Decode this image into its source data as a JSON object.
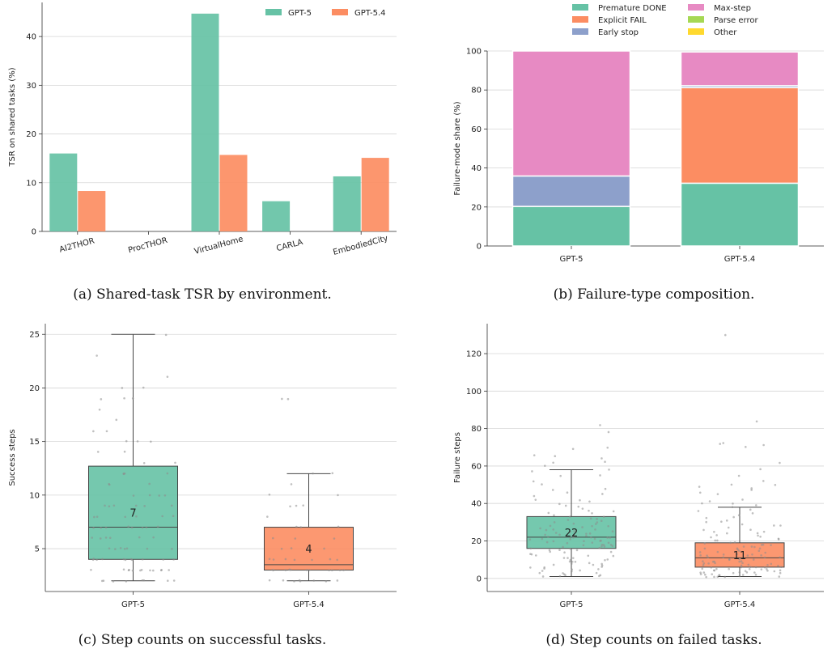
{
  "colors": {
    "gpt5": "#66c2a5",
    "gpt54": "#fc8d62",
    "premature_done": "#66c2a5",
    "explicit_fail": "#fc8d62",
    "early_stop": "#8da0cb",
    "max_step": "#e78ac3",
    "parse_error": "#a6d854",
    "other": "#ffd92f"
  },
  "captions": {
    "a": "(a) Shared-task TSR by environment.",
    "b": "(b) Failure-type composition.",
    "c": "(c) Step counts on successful tasks.",
    "d": "(d) Step counts on failed tasks."
  },
  "chart_data": [
    {
      "id": "a",
      "type": "bar",
      "ylabel": "TSR on shared tasks (%)",
      "categories": [
        "AI2THOR",
        "ProcTHOR",
        "VirtualHome",
        "CARLA",
        "EmbodiedCity"
      ],
      "series": [
        {
          "name": "GPT-5",
          "values": [
            16.0,
            0,
            44.7,
            6.2,
            11.3
          ]
        },
        {
          "name": "GPT-5.4",
          "values": [
            8.3,
            0,
            15.7,
            0,
            15.1
          ]
        }
      ],
      "ylim": [
        0,
        47
      ],
      "yticks": [
        0,
        10,
        20,
        30,
        40
      ],
      "grid": true,
      "legend": "top-right"
    },
    {
      "id": "b",
      "type": "bar",
      "stacked": true,
      "ylabel": "Failure-mode share (%)",
      "categories": [
        "GPT-5",
        "GPT-5.4"
      ],
      "series": [
        {
          "name": "Premature DONE",
          "values": [
            20.3,
            32.2
          ]
        },
        {
          "name": "Explicit FAIL",
          "values": [
            0,
            49.0
          ]
        },
        {
          "name": "Early stop",
          "values": [
            15.6,
            1.0
          ]
        },
        {
          "name": "Max-step",
          "values": [
            64.1,
            17.3
          ]
        },
        {
          "name": "Parse error",
          "values": [
            0,
            0
          ]
        },
        {
          "name": "Other",
          "values": [
            0,
            0
          ]
        }
      ],
      "ylim": [
        0,
        100
      ],
      "yticks": [
        0,
        20,
        40,
        60,
        80,
        100
      ],
      "grid": true,
      "legend": "top"
    },
    {
      "id": "c",
      "type": "box",
      "ylabel": "Success steps",
      "categories": [
        "GPT-5",
        "GPT-5.4"
      ],
      "boxes": [
        {
          "name": "GPT-5",
          "whisker_low": 2,
          "q1": 4,
          "median": 7,
          "q3": 12.7,
          "whisker_high": 25,
          "median_label": "7",
          "points": [
            25,
            23,
            21,
            20,
            20,
            19,
            19,
            19,
            18,
            17,
            16,
            16,
            15,
            15,
            15,
            14,
            14,
            13,
            13,
            12,
            12,
            12,
            12,
            11,
            11,
            11,
            10,
            10,
            10,
            10,
            9,
            9,
            9,
            9,
            9,
            9,
            8,
            8,
            8,
            8,
            8,
            8,
            7,
            7,
            7,
            7,
            7,
            7,
            7,
            7,
            6,
            6,
            6,
            6,
            6,
            6,
            5,
            5,
            5,
            5,
            5,
            5,
            5,
            4,
            4,
            4,
            4,
            4,
            4,
            4,
            4,
            4,
            4,
            4,
            3,
            3,
            3,
            3,
            3,
            3,
            3,
            3,
            3,
            3,
            3,
            3,
            2,
            2,
            2,
            2,
            2,
            2,
            2,
            2
          ]
        },
        {
          "name": "GPT-5.4",
          "whisker_low": 2,
          "q1": 3,
          "median": 3.5,
          "q3": 7,
          "whisker_high": 12,
          "median_label": "4",
          "points": [
            19,
            19,
            12,
            12,
            11,
            10,
            10,
            9,
            9,
            9,
            8,
            7,
            7,
            7,
            6,
            6,
            6,
            5,
            5,
            5,
            5,
            4,
            4,
            4,
            4,
            4,
            4,
            4,
            3,
            3,
            3,
            3,
            3,
            3,
            3,
            3,
            3,
            3,
            3,
            2,
            2,
            2,
            2,
            2,
            2,
            2,
            2
          ]
        }
      ],
      "ylim": [
        1,
        26
      ],
      "yticks": [
        5,
        10,
        15,
        20,
        25
      ],
      "grid": true
    },
    {
      "id": "d",
      "type": "box",
      "ylabel": "Failure steps",
      "categories": [
        "GPT-5",
        "GPT-5.4"
      ],
      "boxes": [
        {
          "name": "GPT-5",
          "whisker_low": 1,
          "q1": 16,
          "median": 22,
          "q3": 33,
          "whisker_high": 58,
          "median_label": "22",
          "points": [
            82,
            78,
            70,
            69,
            66,
            65,
            64,
            62,
            62,
            60,
            58,
            57,
            55,
            55,
            52,
            50,
            48,
            47,
            46,
            45,
            44,
            42,
            42,
            41,
            40,
            39,
            38,
            37,
            36,
            36,
            35,
            35,
            34,
            33,
            33,
            32,
            32,
            31,
            31,
            30,
            30,
            29,
            29,
            28,
            28,
            28,
            27,
            27,
            26,
            26,
            26,
            25,
            25,
            25,
            24,
            24,
            24,
            23,
            23,
            23,
            23,
            22,
            22,
            22,
            22,
            22,
            21,
            21,
            21,
            21,
            20,
            20,
            20,
            20,
            19,
            19,
            19,
            19,
            18,
            18,
            18,
            18,
            17,
            17,
            17,
            17,
            16,
            16,
            16,
            15,
            15,
            15,
            14,
            14,
            14,
            13,
            13,
            12,
            12,
            12,
            11,
            11,
            11,
            10,
            10,
            10,
            9,
            9,
            9,
            8,
            8,
            8,
            7,
            7,
            7,
            6,
            6,
            6,
            5,
            5,
            5,
            4,
            4,
            4,
            3,
            3,
            3,
            2,
            2,
            2,
            1,
            1,
            1
          ]
        },
        {
          "name": "GPT-5.4",
          "whisker_low": 1,
          "q1": 6,
          "median": 11,
          "q3": 19,
          "whisker_high": 38,
          "median_label": "11",
          "points": [
            130,
            84,
            72,
            72,
            71,
            70,
            62,
            58,
            55,
            52,
            50,
            50,
            49,
            48,
            47,
            46,
            45,
            42,
            41,
            40,
            40,
            39,
            38,
            37,
            36,
            35,
            34,
            33,
            32,
            31,
            30,
            30,
            29,
            28,
            28,
            27,
            26,
            26,
            25,
            25,
            24,
            24,
            23,
            23,
            22,
            22,
            21,
            21,
            20,
            20,
            19,
            19,
            19,
            18,
            18,
            18,
            17,
            17,
            17,
            16,
            16,
            16,
            15,
            15,
            15,
            14,
            14,
            14,
            13,
            13,
            13,
            12,
            12,
            12,
            12,
            11,
            11,
            11,
            11,
            10,
            10,
            10,
            10,
            9,
            9,
            9,
            9,
            9,
            8,
            8,
            8,
            8,
            8,
            7,
            7,
            7,
            7,
            7,
            6,
            6,
            6,
            6,
            6,
            6,
            5,
            5,
            5,
            5,
            5,
            5,
            4,
            4,
            4,
            4,
            4,
            4,
            3,
            3,
            3,
            3,
            3,
            3,
            3,
            2,
            2,
            2,
            2,
            2,
            2,
            2,
            1,
            1,
            1,
            1,
            1,
            1
          ]
        }
      ],
      "ylim": [
        -7,
        136
      ],
      "yticks": [
        0,
        20,
        40,
        60,
        80,
        100,
        120
      ],
      "grid": true
    }
  ]
}
